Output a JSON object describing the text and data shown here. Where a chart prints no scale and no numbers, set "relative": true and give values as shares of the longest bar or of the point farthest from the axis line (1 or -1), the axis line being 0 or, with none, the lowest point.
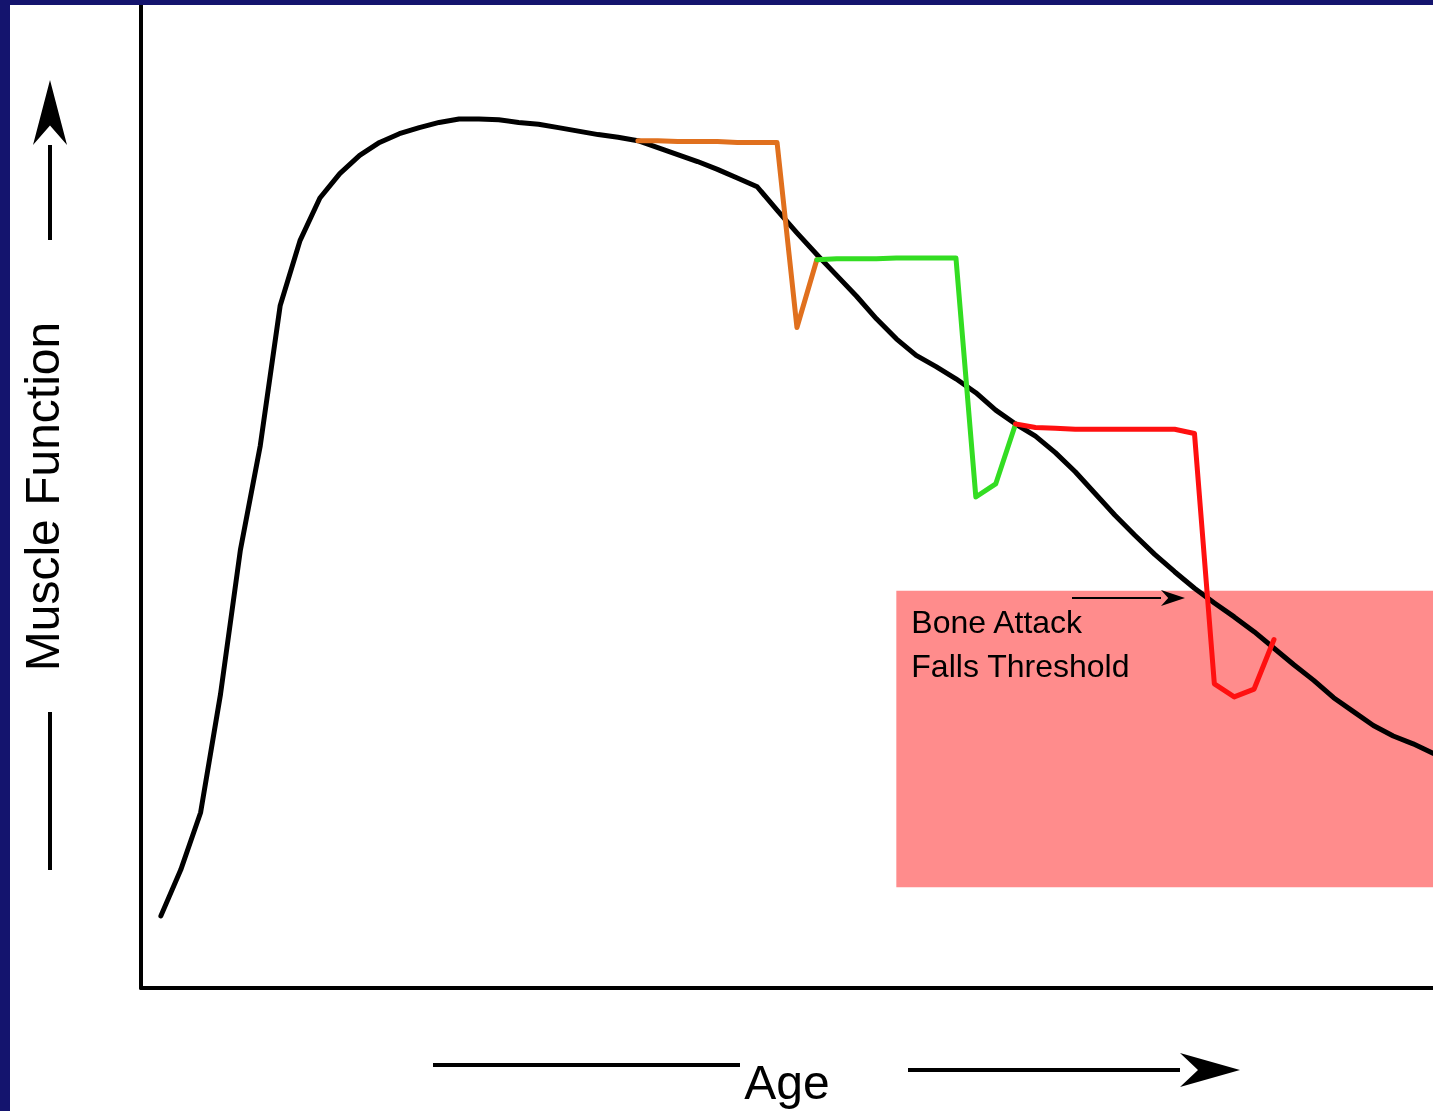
{
  "chart_data": {
    "type": "line",
    "relative": true,
    "xlabel": "Age",
    "ylabel": "Muscle Function",
    "grid": false,
    "marker": "none",
    "line_style": "solid",
    "categories": [
      null,
      null,
      null,
      null,
      null,
      null,
      null,
      null,
      null,
      null,
      null,
      null,
      null,
      null,
      null,
      null,
      null,
      null,
      null,
      null,
      null,
      null,
      null,
      null,
      null,
      null,
      null,
      null,
      null,
      null,
      null,
      null,
      null,
      null,
      null,
      null,
      null,
      null,
      null,
      null,
      null,
      null,
      null,
      null,
      null,
      null,
      null,
      null,
      null,
      null,
      null,
      null,
      null,
      null,
      null,
      null,
      null,
      null,
      null,
      null,
      null,
      null,
      null,
      null,
      null,
      null
    ],
    "series": [
      {
        "color": "#000000",
        "values": [
          null,
          0.083,
          0.136,
          0.202,
          0.338,
          0.504,
          0.624,
          0.785,
          0.86,
          0.909,
          0.937,
          0.958,
          0.973,
          0.983,
          0.99,
          0.996,
          1,
          1,
          0.999,
          0.996,
          0.994,
          0.99,
          0.986,
          0.982,
          0.979,
          0.975,
          0.967,
          0.959,
          0.951,
          0.942,
          0.932,
          0.922,
          0.895,
          0.869,
          0.844,
          0.82,
          0.796,
          0.77,
          0.747,
          0.728,
          0.715,
          0.701,
          0.685,
          0.665,
          0.649,
          0.635,
          0.616,
          0.594,
          0.569,
          0.544,
          0.521,
          0.499,
          0.479,
          0.46,
          0.443,
          0.427,
          0.41,
          0.391,
          0.372,
          0.354,
          0.334,
          0.318,
          0.302,
          0.29,
          0.281,
          0.27
        ]
      },
      {
        "color": "#e0701e",
        "values": [
          null,
          null,
          null,
          null,
          null,
          null,
          null,
          null,
          null,
          null,
          null,
          null,
          null,
          null,
          null,
          null,
          null,
          null,
          null,
          null,
          null,
          null,
          null,
          null,
          null,
          0.975,
          0.975,
          0.974,
          0.974,
          0.974,
          0.973,
          0.973,
          0.973,
          0.76,
          0.838,
          null,
          null,
          null,
          null,
          null,
          null,
          null,
          null,
          null,
          null,
          null,
          null,
          null,
          null,
          null,
          null,
          null,
          null,
          null,
          null,
          null,
          null,
          null,
          null,
          null,
          null,
          null,
          null,
          null,
          null,
          null
        ]
      },
      {
        "color": "#33dd22",
        "values": [
          null,
          null,
          null,
          null,
          null,
          null,
          null,
          null,
          null,
          null,
          null,
          null,
          null,
          null,
          null,
          null,
          null,
          null,
          null,
          null,
          null,
          null,
          null,
          null,
          null,
          null,
          null,
          null,
          null,
          null,
          null,
          null,
          null,
          null,
          0.838,
          0.839,
          0.839,
          0.839,
          0.84,
          0.84,
          0.84,
          0.84,
          0.565,
          0.58,
          0.649,
          null,
          null,
          null,
          null,
          null,
          null,
          null,
          null,
          null,
          null,
          null,
          null,
          null,
          null,
          null,
          null,
          null,
          null,
          null,
          null,
          null
        ]
      },
      {
        "color": "#ff1010",
        "values": [
          null,
          null,
          null,
          null,
          null,
          null,
          null,
          null,
          null,
          null,
          null,
          null,
          null,
          null,
          null,
          null,
          null,
          null,
          null,
          null,
          null,
          null,
          null,
          null,
          null,
          null,
          null,
          null,
          null,
          null,
          null,
          null,
          null,
          null,
          null,
          null,
          null,
          null,
          null,
          null,
          null,
          null,
          null,
          null,
          0.649,
          0.645,
          0.644,
          0.643,
          0.643,
          0.643,
          0.643,
          0.643,
          0.643,
          0.638,
          0.35,
          0.335,
          0.344,
          0.401,
          null,
          null,
          null,
          null,
          null,
          null,
          null,
          null
        ]
      }
    ],
    "bands": [
      {
        "axis": "y",
        "from": 0.116,
        "to": 0.457,
        "label": "Bone Attack\nFalls Threshold",
        "color": "#ff8c8c"
      }
    ]
  }
}
